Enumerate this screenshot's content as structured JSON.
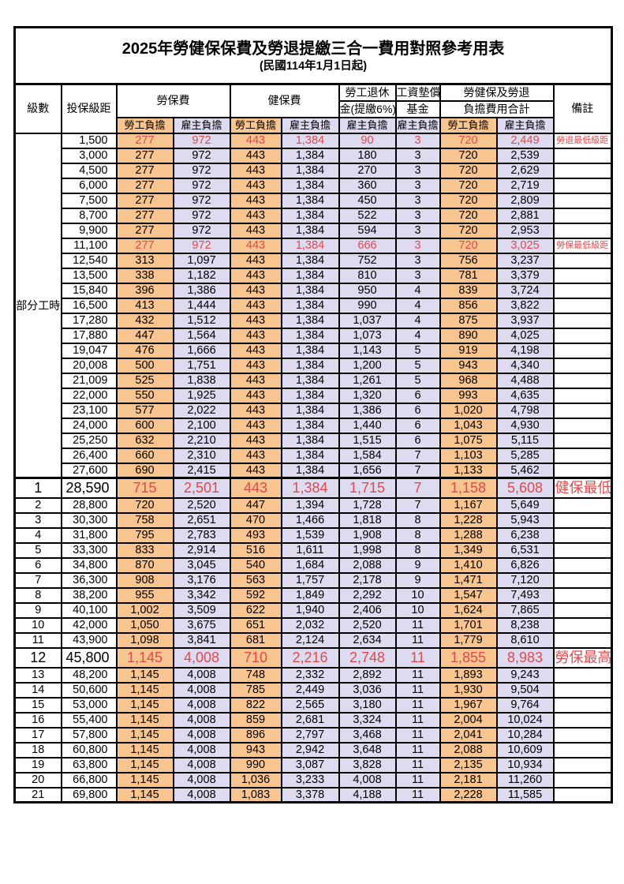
{
  "title": "2025年勞健保保費及勞退提繳三合一費用對照參考用表",
  "subtitle": "(民國114年1月1日起)",
  "header": {
    "level": "級數",
    "bracket": "投保級距",
    "labor_group": "勞保費",
    "health_group": "健保費",
    "pension_line1": "勞工退休",
    "pension_line2": "金(提繳6%)",
    "wage_fund_line1": "工資墊償",
    "wage_fund_line2": "基金",
    "total_line1": "勞健保及勞退",
    "total_line2": "負擔費用合計",
    "remark": "備註",
    "employee": "勞工負擔",
    "employer": "雇主負擔"
  },
  "part_time_label": "部分工時",
  "part_time_row_count": 23,
  "colors": {
    "employee_bg": "#f8c48f",
    "employer_bg": "#dedaf0",
    "highlight_text": "#e04a4d"
  },
  "row_columns": [
    "level",
    "bracket",
    "labor_employee",
    "labor_employer",
    "health_employee",
    "health_employer",
    "pension_employer",
    "wage_fund_employer",
    "total_employee",
    "total_employer",
    "remark"
  ],
  "rows": [
    {
      "cells": [
        "",
        "1,500",
        "277",
        "972",
        "443",
        "1,384",
        "90",
        "3",
        "720",
        "2,449",
        "勞退最低級距"
      ],
      "style": "hl"
    },
    {
      "cells": [
        "",
        "3,000",
        "277",
        "972",
        "443",
        "1,384",
        "180",
        "3",
        "720",
        "2,539",
        ""
      ],
      "style": ""
    },
    {
      "cells": [
        "",
        "4,500",
        "277",
        "972",
        "443",
        "1,384",
        "270",
        "3",
        "720",
        "2,629",
        ""
      ],
      "style": ""
    },
    {
      "cells": [
        "",
        "6,000",
        "277",
        "972",
        "443",
        "1,384",
        "360",
        "3",
        "720",
        "2,719",
        ""
      ],
      "style": ""
    },
    {
      "cells": [
        "",
        "7,500",
        "277",
        "972",
        "443",
        "1,384",
        "450",
        "3",
        "720",
        "2,809",
        ""
      ],
      "style": ""
    },
    {
      "cells": [
        "",
        "8,700",
        "277",
        "972",
        "443",
        "1,384",
        "522",
        "3",
        "720",
        "2,881",
        ""
      ],
      "style": ""
    },
    {
      "cells": [
        "",
        "9,900",
        "277",
        "972",
        "443",
        "1,384",
        "594",
        "3",
        "720",
        "2,953",
        ""
      ],
      "style": ""
    },
    {
      "cells": [
        "",
        "11,100",
        "277",
        "972",
        "443",
        "1,384",
        "666",
        "3",
        "720",
        "3,025",
        "勞保最低級距"
      ],
      "style": "hl"
    },
    {
      "cells": [
        "",
        "12,540",
        "313",
        "1,097",
        "443",
        "1,384",
        "752",
        "3",
        "756",
        "3,237",
        ""
      ],
      "style": ""
    },
    {
      "cells": [
        "",
        "13,500",
        "338",
        "1,182",
        "443",
        "1,384",
        "810",
        "3",
        "781",
        "3,379",
        ""
      ],
      "style": ""
    },
    {
      "cells": [
        "",
        "15,840",
        "396",
        "1,386",
        "443",
        "1,384",
        "950",
        "4",
        "839",
        "3,724",
        ""
      ],
      "style": ""
    },
    {
      "cells": [
        "",
        "16,500",
        "413",
        "1,444",
        "443",
        "1,384",
        "990",
        "4",
        "856",
        "3,822",
        ""
      ],
      "style": ""
    },
    {
      "cells": [
        "",
        "17,280",
        "432",
        "1,512",
        "443",
        "1,384",
        "1,037",
        "4",
        "875",
        "3,937",
        ""
      ],
      "style": ""
    },
    {
      "cells": [
        "",
        "17,880",
        "447",
        "1,564",
        "443",
        "1,384",
        "1,073",
        "4",
        "890",
        "4,025",
        ""
      ],
      "style": ""
    },
    {
      "cells": [
        "",
        "19,047",
        "476",
        "1,666",
        "443",
        "1,384",
        "1,143",
        "5",
        "919",
        "4,198",
        ""
      ],
      "style": ""
    },
    {
      "cells": [
        "",
        "20,008",
        "500",
        "1,751",
        "443",
        "1,384",
        "1,200",
        "5",
        "943",
        "4,340",
        ""
      ],
      "style": ""
    },
    {
      "cells": [
        "",
        "21,009",
        "525",
        "1,838",
        "443",
        "1,384",
        "1,261",
        "5",
        "968",
        "4,488",
        ""
      ],
      "style": ""
    },
    {
      "cells": [
        "",
        "22,000",
        "550",
        "1,925",
        "443",
        "1,384",
        "1,320",
        "6",
        "993",
        "4,635",
        ""
      ],
      "style": ""
    },
    {
      "cells": [
        "",
        "23,100",
        "577",
        "2,022",
        "443",
        "1,384",
        "1,386",
        "6",
        "1,020",
        "4,798",
        ""
      ],
      "style": ""
    },
    {
      "cells": [
        "",
        "24,000",
        "600",
        "2,100",
        "443",
        "1,384",
        "1,440",
        "6",
        "1,043",
        "4,930",
        ""
      ],
      "style": ""
    },
    {
      "cells": [
        "",
        "25,250",
        "632",
        "2,210",
        "443",
        "1,384",
        "1,515",
        "6",
        "1,075",
        "5,115",
        ""
      ],
      "style": ""
    },
    {
      "cells": [
        "",
        "26,400",
        "660",
        "2,310",
        "443",
        "1,384",
        "1,584",
        "7",
        "1,103",
        "5,285",
        ""
      ],
      "style": ""
    },
    {
      "cells": [
        "",
        "27,600",
        "690",
        "2,415",
        "443",
        "1,384",
        "1,656",
        "7",
        "1,133",
        "5,462",
        ""
      ],
      "style": ""
    },
    {
      "cells": [
        "1",
        "28,590",
        "715",
        "2,501",
        "443",
        "1,384",
        "1,715",
        "7",
        "1,158",
        "5,608",
        "健保最低級距"
      ],
      "style": "hl large thick-top"
    },
    {
      "cells": [
        "2",
        "28,800",
        "720",
        "2,520",
        "447",
        "1,394",
        "1,728",
        "7",
        "1,167",
        "5,649",
        ""
      ],
      "style": ""
    },
    {
      "cells": [
        "3",
        "30,300",
        "758",
        "2,651",
        "470",
        "1,466",
        "1,818",
        "8",
        "1,228",
        "5,943",
        ""
      ],
      "style": ""
    },
    {
      "cells": [
        "4",
        "31,800",
        "795",
        "2,783",
        "493",
        "1,539",
        "1,908",
        "8",
        "1,288",
        "6,238",
        ""
      ],
      "style": ""
    },
    {
      "cells": [
        "5",
        "33,300",
        "833",
        "2,914",
        "516",
        "1,611",
        "1,998",
        "8",
        "1,349",
        "6,531",
        ""
      ],
      "style": ""
    },
    {
      "cells": [
        "6",
        "34,800",
        "870",
        "3,045",
        "540",
        "1,684",
        "2,088",
        "9",
        "1,410",
        "6,826",
        ""
      ],
      "style": ""
    },
    {
      "cells": [
        "7",
        "36,300",
        "908",
        "3,176",
        "563",
        "1,757",
        "2,178",
        "9",
        "1,471",
        "7,120",
        ""
      ],
      "style": ""
    },
    {
      "cells": [
        "8",
        "38,200",
        "955",
        "3,342",
        "592",
        "1,849",
        "2,292",
        "10",
        "1,547",
        "7,493",
        ""
      ],
      "style": ""
    },
    {
      "cells": [
        "9",
        "40,100",
        "1,002",
        "3,509",
        "622",
        "1,940",
        "2,406",
        "10",
        "1,624",
        "7,865",
        ""
      ],
      "style": ""
    },
    {
      "cells": [
        "10",
        "42,000",
        "1,050",
        "3,675",
        "651",
        "2,032",
        "2,520",
        "11",
        "1,701",
        "8,238",
        ""
      ],
      "style": ""
    },
    {
      "cells": [
        "11",
        "43,900",
        "1,098",
        "3,841",
        "681",
        "2,124",
        "2,634",
        "11",
        "1,779",
        "8,610",
        ""
      ],
      "style": ""
    },
    {
      "cells": [
        "12",
        "45,800",
        "1,145",
        "4,008",
        "710",
        "2,216",
        "2,748",
        "11",
        "1,855",
        "8,983",
        "勞保最高級距"
      ],
      "style": "hl large"
    },
    {
      "cells": [
        "13",
        "48,200",
        "1,145",
        "4,008",
        "748",
        "2,332",
        "2,892",
        "11",
        "1,893",
        "9,243",
        ""
      ],
      "style": ""
    },
    {
      "cells": [
        "14",
        "50,600",
        "1,145",
        "4,008",
        "785",
        "2,449",
        "3,036",
        "11",
        "1,930",
        "9,504",
        ""
      ],
      "style": ""
    },
    {
      "cells": [
        "15",
        "53,000",
        "1,145",
        "4,008",
        "822",
        "2,565",
        "3,180",
        "11",
        "1,967",
        "9,764",
        ""
      ],
      "style": ""
    },
    {
      "cells": [
        "16",
        "55,400",
        "1,145",
        "4,008",
        "859",
        "2,681",
        "3,324",
        "11",
        "2,004",
        "10,024",
        ""
      ],
      "style": ""
    },
    {
      "cells": [
        "17",
        "57,800",
        "1,145",
        "4,008",
        "896",
        "2,797",
        "3,468",
        "11",
        "2,041",
        "10,284",
        ""
      ],
      "style": ""
    },
    {
      "cells": [
        "18",
        "60,800",
        "1,145",
        "4,008",
        "943",
        "2,942",
        "3,648",
        "11",
        "2,088",
        "10,609",
        ""
      ],
      "style": ""
    },
    {
      "cells": [
        "19",
        "63,800",
        "1,145",
        "4,008",
        "990",
        "3,087",
        "3,828",
        "11",
        "2,135",
        "10,934",
        ""
      ],
      "style": ""
    },
    {
      "cells": [
        "20",
        "66,800",
        "1,145",
        "4,008",
        "1,036",
        "3,233",
        "4,008",
        "11",
        "2,181",
        "11,260",
        ""
      ],
      "style": ""
    },
    {
      "cells": [
        "21",
        "69,800",
        "1,145",
        "4,008",
        "1,083",
        "3,378",
        "4,188",
        "11",
        "2,228",
        "11,585",
        ""
      ],
      "style": ""
    }
  ]
}
